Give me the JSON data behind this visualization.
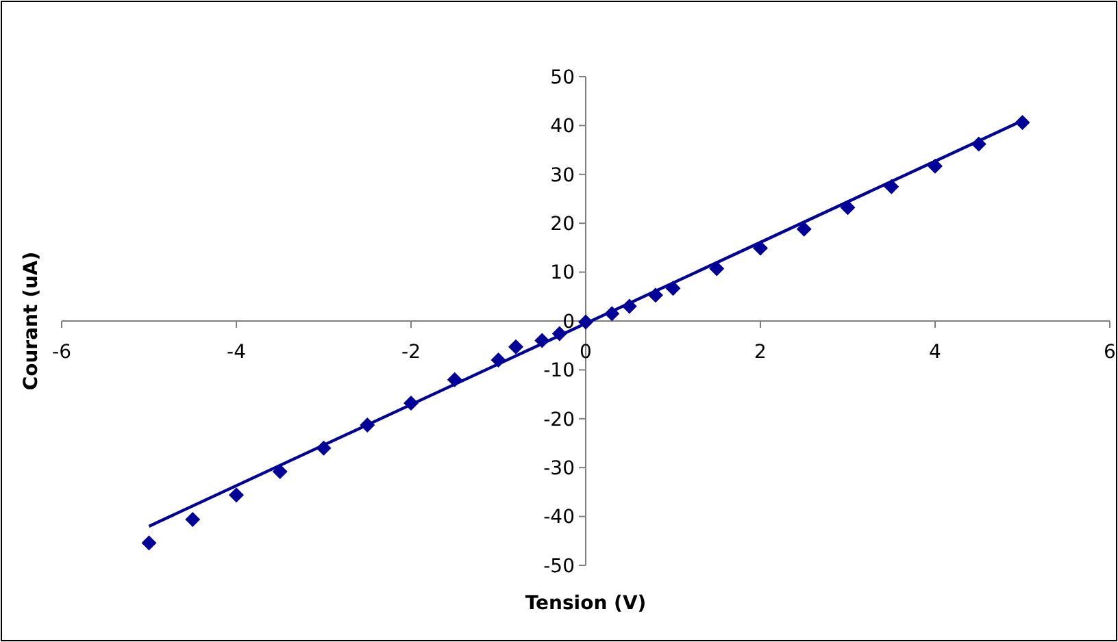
{
  "chart_data": {
    "type": "scatter",
    "xlabel": "Tension (V)",
    "ylabel": "Courant (uA)",
    "xlim": [
      -6,
      6
    ],
    "ylim": [
      -50,
      50
    ],
    "xticks": [
      -6,
      -4,
      -2,
      0,
      2,
      4,
      6
    ],
    "yticks": [
      -50,
      -40,
      -30,
      -20,
      -10,
      0,
      10,
      20,
      30,
      40,
      50
    ],
    "grid": false,
    "marker": "diamond",
    "series": [
      {
        "color": "#000099",
        "x": [
          -5,
          -4.5,
          -4,
          -3.5,
          -3,
          -2.5,
          -2,
          -1.5,
          -1,
          -0.8,
          -0.5,
          -0.3,
          0,
          0.3,
          0.5,
          0.8,
          1,
          1.5,
          2,
          2.5,
          3,
          3.5,
          4,
          4.5,
          5
        ],
        "values": [
          -45.4,
          -40.6,
          -35.6,
          -30.8,
          -26,
          -21.3,
          -16.8,
          -12,
          -8,
          -5.3,
          -4,
          -2.6,
          -0.2,
          1.5,
          3,
          5.3,
          6.7,
          10.7,
          14.9,
          18.8,
          23.2,
          27.5,
          31.7,
          36.2,
          40.6
        ]
      },
      {
        "type": "line",
        "color": "#000099",
        "marker": "none",
        "line_style": "solid",
        "x": [
          -5,
          5
        ],
        "values": [
          -42,
          41
        ]
      }
    ]
  }
}
